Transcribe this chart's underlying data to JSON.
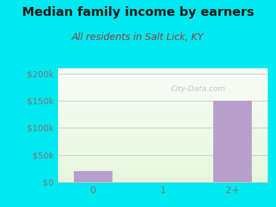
{
  "title": "Median family income by earners",
  "subtitle": "All residents in Salt Lick, KY",
  "categories": [
    "0",
    "1",
    "2+"
  ],
  "values": [
    20000,
    0,
    150000
  ],
  "bar_color": "#b8a0cc",
  "ylim": [
    0,
    210000
  ],
  "yticks": [
    0,
    50000,
    100000,
    150000,
    200000
  ],
  "ytick_labels": [
    "$0",
    "$50k",
    "$100k",
    "$150k",
    "$200k"
  ],
  "title_fontsize": 13,
  "subtitle_fontsize": 10,
  "title_color": "#1a1a1a",
  "subtitle_color": "#8b4040",
  "outer_bg": "#00e8f0",
  "watermark": "City-Data.com",
  "tick_color": "#777777",
  "grid_color": "#c8c8c8",
  "xtick_fontsize": 10,
  "ytick_fontsize": 9
}
